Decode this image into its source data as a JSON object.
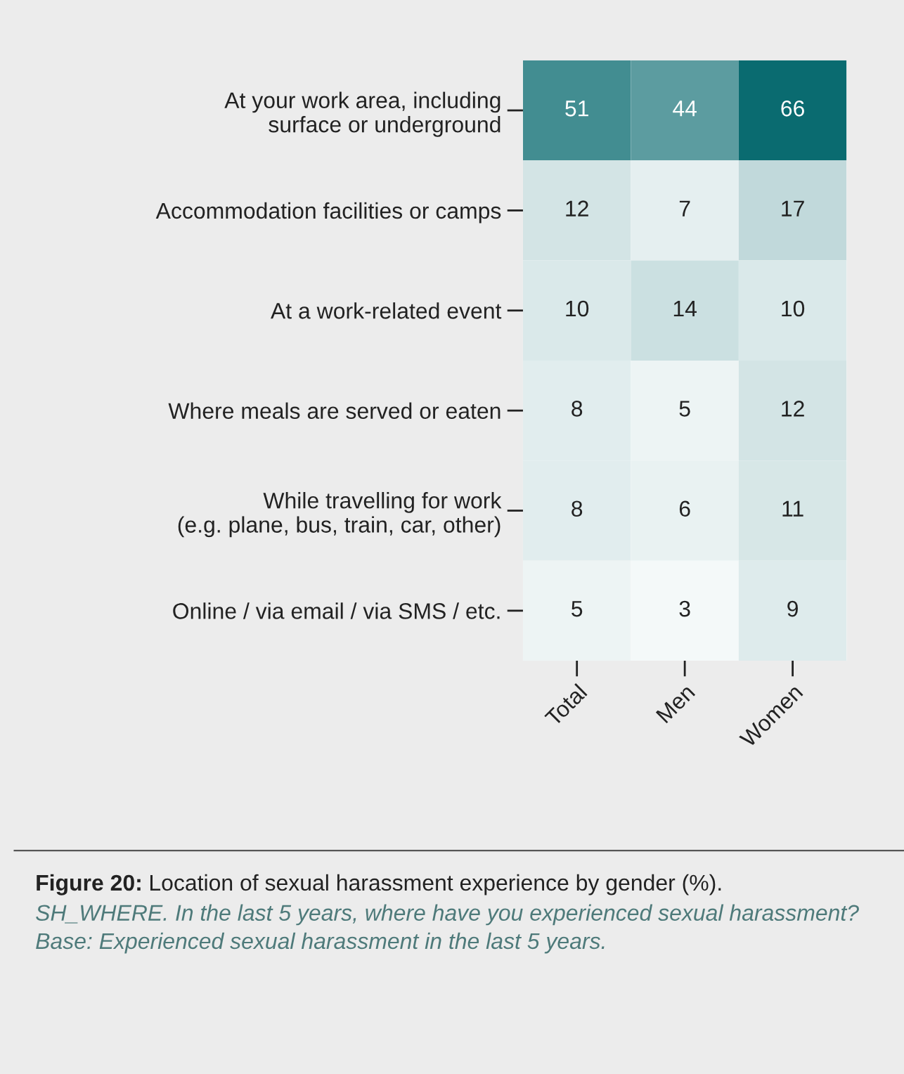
{
  "chart_data": {
    "type": "heatmap",
    "categories": [
      "Total",
      "Men",
      "Women"
    ],
    "y_categories": [
      "At your work area, including\nsurface or underground",
      "Accommodation facilities or camps",
      "At a work-related event",
      "Where meals are served or eaten",
      "While travelling for work\n(e.g. plane, bus, train, car, other)",
      "Online / via email / via SMS / etc."
    ],
    "cells": [
      [
        51,
        44,
        66
      ],
      [
        12,
        7,
        17
      ],
      [
        10,
        14,
        10
      ],
      [
        8,
        5,
        12
      ],
      [
        8,
        6,
        11
      ],
      [
        5,
        3,
        9
      ]
    ],
    "data_labels": true,
    "annotations": [
      "Figure 20:",
      "Location of sexual harassment experience by gender (%).",
      "SH_WHERE. In the last 5 years, where have you experienced sexual harassment? Base: Experienced sexual harassment in the last 5 years."
    ]
  }
}
